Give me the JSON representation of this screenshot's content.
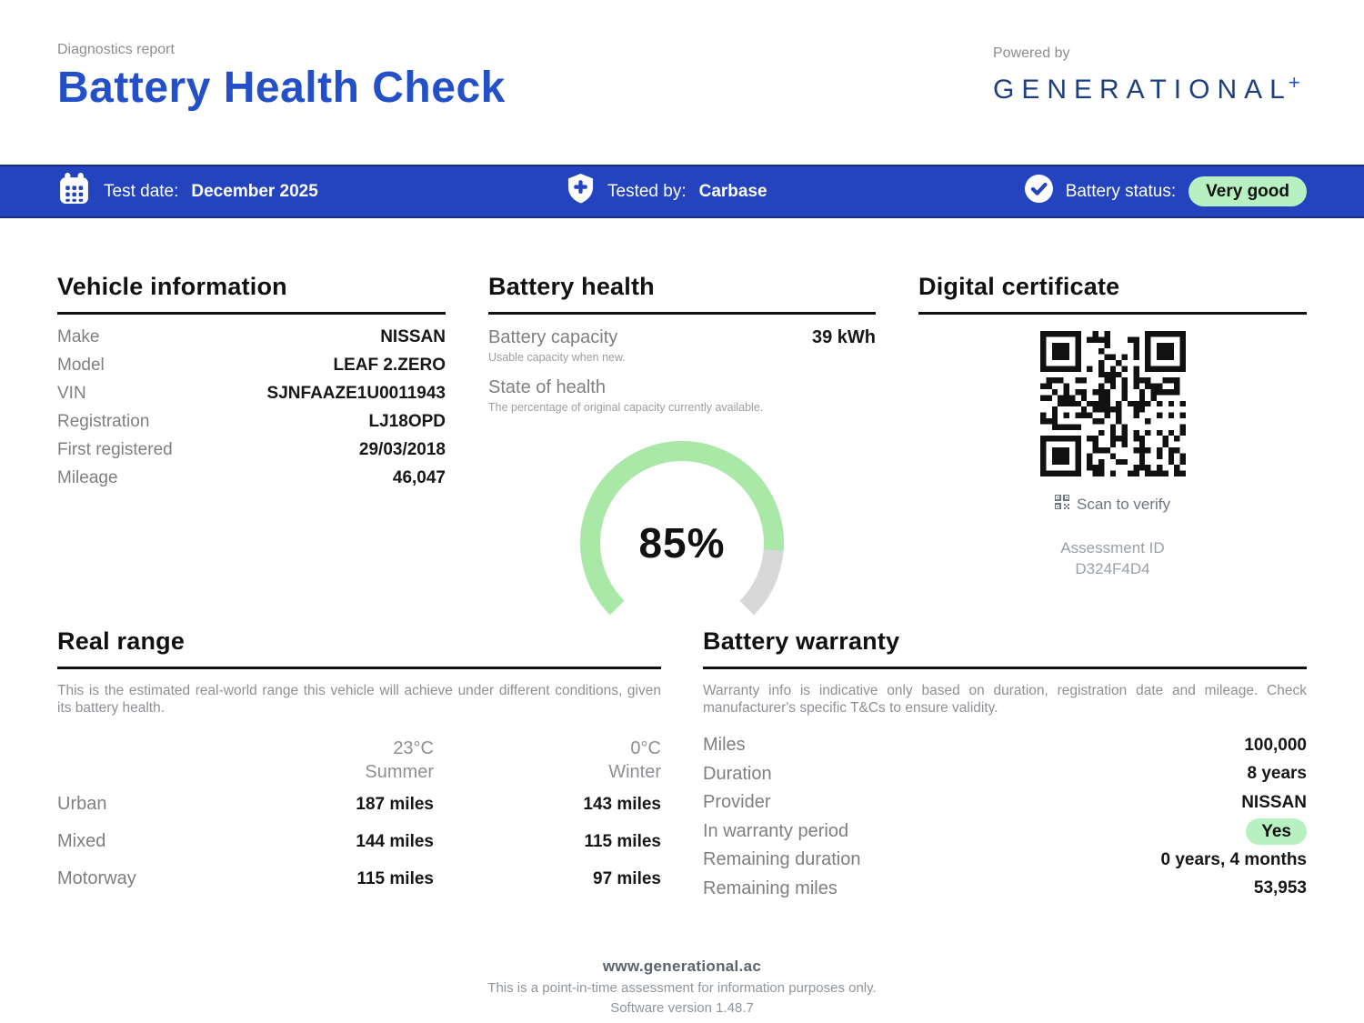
{
  "header": {
    "kicker": "Diagnostics report",
    "title": "Battery Health Check",
    "powered_by": "Powered by",
    "brand": "GENERATIONAL",
    "brand_plus": "+"
  },
  "statusbar": {
    "test_date_label": "Test date:",
    "test_date": "December 2025",
    "tested_by_label": "Tested by:",
    "tested_by": "Carbase",
    "battery_status_label": "Battery status:",
    "battery_status": "Very good"
  },
  "vehicle_info": {
    "heading": "Vehicle information",
    "rows": [
      {
        "label": "Make",
        "value": "NISSAN"
      },
      {
        "label": "Model",
        "value": "LEAF 2.ZERO"
      },
      {
        "label": "VIN",
        "value": "SJNFAAZE1U0011943"
      },
      {
        "label": "Registration",
        "value": "LJ18OPD"
      },
      {
        "label": "First registered",
        "value": "29/03/2018"
      },
      {
        "label": "Mileage",
        "value": "46,047"
      }
    ]
  },
  "battery_health": {
    "heading": "Battery health",
    "capacity_label": "Battery capacity",
    "capacity_value": "39 kWh",
    "capacity_note": "Usable capacity when new.",
    "soh_label": "State of health",
    "soh_note": "The percentage of original capacity currently available.",
    "soh_percent": 85,
    "soh_display": "85%"
  },
  "certificate": {
    "heading": "Digital certificate",
    "scan_label": "Scan to verify",
    "assessment_id_label": "Assessment ID",
    "assessment_id": "D324F4D4"
  },
  "real_range": {
    "heading": "Real range",
    "description": "This is the estimated real-world range this vehicle will achieve under different conditions, given its battery health.",
    "columns": [
      {
        "temp": "23°C",
        "season": "Summer"
      },
      {
        "temp": "0°C",
        "season": "Winter"
      }
    ],
    "rows": [
      {
        "label": "Urban",
        "summer": "187 miles",
        "winter": "143 miles"
      },
      {
        "label": "Mixed",
        "summer": "144 miles",
        "winter": "115 miles"
      },
      {
        "label": "Motorway",
        "summer": "115 miles",
        "winter": "97 miles"
      }
    ]
  },
  "warranty": {
    "heading": "Battery warranty",
    "description": "Warranty info is indicative only based on duration, registration date and mileage. Check manufacturer's specific T&Cs to ensure validity.",
    "rows": [
      {
        "label": "Miles",
        "value": "100,000"
      },
      {
        "label": "Duration",
        "value": "8 years"
      },
      {
        "label": "Provider",
        "value": "NISSAN"
      },
      {
        "label": "In warranty period",
        "value": "Yes",
        "pill": true
      },
      {
        "label": "Remaining duration",
        "value": "0 years, 4 months"
      },
      {
        "label": "Remaining miles",
        "value": "53,953"
      }
    ]
  },
  "footer": {
    "site": "www.generational.ac",
    "disclaimer": "This is a point-in-time assessment for information purposes only.",
    "version": "Software version 1.48.7"
  },
  "colors": {
    "title_blue": "#2350c9",
    "bar_blue": "#2343bf",
    "brand_navy": "#1e3f7d",
    "status_pill_green": "#b7f1c1",
    "gauge_green": "#a9e8a6",
    "gauge_gray": "#d8d8d8"
  }
}
